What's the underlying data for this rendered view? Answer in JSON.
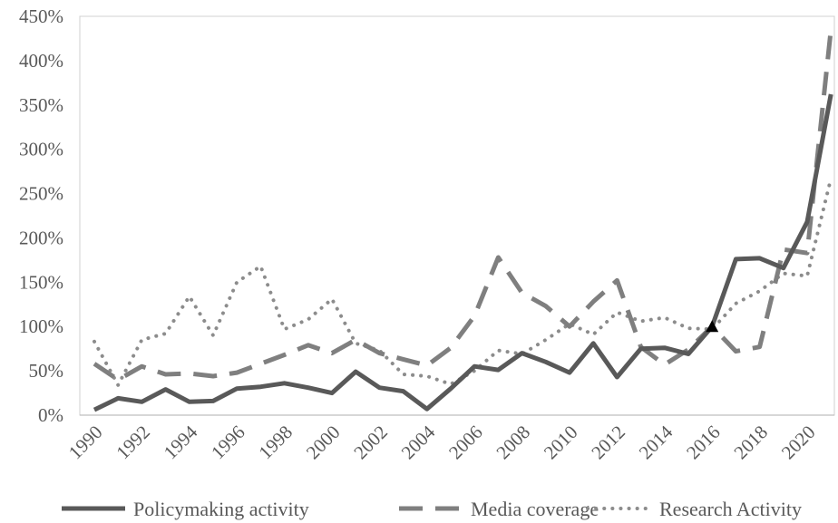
{
  "chart_data": {
    "type": "line",
    "title": "",
    "xlabel": "",
    "ylabel": "",
    "categories": [
      "1990",
      "1991",
      "1992",
      "1993",
      "1994",
      "1995",
      "1996",
      "1997",
      "1998",
      "1999",
      "2000",
      "2001",
      "2002",
      "2003",
      "2004",
      "2005",
      "2006",
      "2007",
      "2008",
      "2009",
      "2010",
      "2011",
      "2012",
      "2013",
      "2014",
      "2015",
      "2016",
      "2017",
      "2018",
      "2019",
      "2020",
      "2021"
    ],
    "x_tick_labels": [
      "1990",
      "1992",
      "1994",
      "1996",
      "1998",
      "2000",
      "2002",
      "2004",
      "2006",
      "2008",
      "2010",
      "2012",
      "2014",
      "2016",
      "2018",
      "2020"
    ],
    "ylim": [
      0,
      450
    ],
    "y_ticks": [
      0,
      50,
      100,
      150,
      200,
      250,
      300,
      350,
      400,
      450
    ],
    "y_tick_labels": [
      "0%",
      "50%",
      "100%",
      "150%",
      "200%",
      "250%",
      "300%",
      "350%",
      "400%",
      "450%"
    ],
    "grid": false,
    "legend_position": "bottom",
    "marker": {
      "series": "Policymaking activity",
      "x": "2016",
      "y": 100,
      "shape": "triangle"
    },
    "series": [
      {
        "name": "Policymaking activity",
        "style": "solid",
        "color": "#595959",
        "values": [
          6,
          19,
          15,
          29,
          15,
          16,
          30,
          32,
          36,
          31,
          25,
          49,
          31,
          27,
          7,
          30,
          55,
          51,
          70,
          60,
          48,
          81,
          43,
          75,
          76,
          69,
          100,
          176,
          177,
          166,
          218,
          362
        ]
      },
      {
        "name": "Media coverage",
        "style": "dashed",
        "color": "#7f7f7f",
        "values": [
          58,
          40,
          55,
          46,
          47,
          44,
          48,
          58,
          68,
          79,
          70,
          85,
          70,
          63,
          56,
          76,
          112,
          178,
          138,
          123,
          100,
          128,
          152,
          77,
          57,
          74,
          100,
          72,
          77,
          187,
          183,
          435
        ]
      },
      {
        "name": "Research Activity",
        "style": "dotted",
        "color": "#8c8c8c",
        "values": [
          83,
          34,
          85,
          92,
          134,
          90,
          150,
          168,
          97,
          108,
          131,
          81,
          73,
          46,
          44,
          35,
          50,
          73,
          69,
          85,
          103,
          91,
          116,
          106,
          110,
          98,
          97,
          126,
          140,
          160,
          157,
          267
        ]
      }
    ]
  }
}
